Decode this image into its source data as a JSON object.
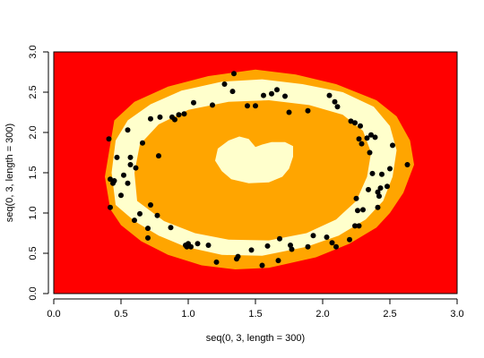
{
  "chart_data": {
    "type": "heatmap",
    "title": "",
    "xlabel": "seq(0, 3, length = 300)",
    "ylabel": "seq(0, 3, length = 300)",
    "xlim": [
      0,
      3
    ],
    "ylim": [
      0,
      3
    ],
    "x_ticks": [
      "0.0",
      "0.5",
      "1.0",
      "1.5",
      "2.0",
      "2.5",
      "3.0"
    ],
    "y_ticks": [
      "0.0",
      "0.5",
      "1.0",
      "1.5",
      "2.0",
      "2.5",
      "3.0"
    ],
    "grid": false,
    "legend": "none",
    "colors": {
      "outer_region": "#ff0000",
      "mid_region": "#ffa500",
      "ring_region": "#ffffcc",
      "center_blob": "#ffffcc",
      "points": "#000000"
    },
    "regions": [
      {
        "name": "outer",
        "color": "#ff0000",
        "polygon": [
          [
            0,
            0
          ],
          [
            3,
            0
          ],
          [
            3,
            3
          ],
          [
            0,
            3
          ]
        ]
      },
      {
        "name": "mid",
        "color": "#ffa500",
        "polygon": [
          [
            0.42,
            1.05
          ],
          [
            0.38,
            1.45
          ],
          [
            0.42,
            1.85
          ],
          [
            0.45,
            2.15
          ],
          [
            0.6,
            2.38
          ],
          [
            0.85,
            2.57
          ],
          [
            1.15,
            2.7
          ],
          [
            1.5,
            2.78
          ],
          [
            1.8,
            2.72
          ],
          [
            2.1,
            2.6
          ],
          [
            2.4,
            2.4
          ],
          [
            2.55,
            2.2
          ],
          [
            2.65,
            1.9
          ],
          [
            2.68,
            1.6
          ],
          [
            2.6,
            1.25
          ],
          [
            2.5,
            1.0
          ],
          [
            2.4,
            0.82
          ],
          [
            2.2,
            0.62
          ],
          [
            1.95,
            0.45
          ],
          [
            1.6,
            0.32
          ],
          [
            1.35,
            0.3
          ],
          [
            1.1,
            0.35
          ],
          [
            0.85,
            0.48
          ],
          [
            0.65,
            0.65
          ],
          [
            0.5,
            0.85
          ]
        ]
      },
      {
        "name": "ring_outer",
        "color": "#ffffcc",
        "polygon": [
          [
            0.46,
            1.1
          ],
          [
            0.43,
            1.5
          ],
          [
            0.46,
            1.9
          ],
          [
            0.55,
            2.15
          ],
          [
            0.72,
            2.35
          ],
          [
            0.95,
            2.52
          ],
          [
            1.25,
            2.63
          ],
          [
            1.55,
            2.66
          ],
          [
            1.85,
            2.6
          ],
          [
            2.15,
            2.5
          ],
          [
            2.38,
            2.32
          ],
          [
            2.5,
            2.08
          ],
          [
            2.55,
            1.78
          ],
          [
            2.52,
            1.45
          ],
          [
            2.45,
            1.15
          ],
          [
            2.32,
            0.92
          ],
          [
            2.12,
            0.72
          ],
          [
            1.88,
            0.58
          ],
          [
            1.55,
            0.47
          ],
          [
            1.25,
            0.48
          ],
          [
            0.98,
            0.58
          ],
          [
            0.78,
            0.72
          ],
          [
            0.6,
            0.9
          ]
        ]
      },
      {
        "name": "ring_inner",
        "color": "#ffa500",
        "polygon": [
          [
            0.62,
            1.15
          ],
          [
            0.6,
            1.5
          ],
          [
            0.64,
            1.85
          ],
          [
            0.78,
            2.1
          ],
          [
            1.0,
            2.28
          ],
          [
            1.3,
            2.38
          ],
          [
            1.6,
            2.4
          ],
          [
            1.9,
            2.34
          ],
          [
            2.15,
            2.22
          ],
          [
            2.3,
            2.02
          ],
          [
            2.36,
            1.75
          ],
          [
            2.33,
            1.45
          ],
          [
            2.25,
            1.15
          ],
          [
            2.1,
            0.92
          ],
          [
            1.88,
            0.75
          ],
          [
            1.6,
            0.66
          ],
          [
            1.3,
            0.67
          ],
          [
            1.05,
            0.75
          ],
          [
            0.82,
            0.9
          ]
        ]
      },
      {
        "name": "center_blob",
        "color": "#ffffcc",
        "polygon": [
          [
            1.2,
            1.65
          ],
          [
            1.22,
            1.8
          ],
          [
            1.3,
            1.9
          ],
          [
            1.38,
            1.95
          ],
          [
            1.45,
            1.92
          ],
          [
            1.5,
            1.82
          ],
          [
            1.55,
            1.85
          ],
          [
            1.62,
            1.88
          ],
          [
            1.72,
            1.88
          ],
          [
            1.78,
            1.83
          ],
          [
            1.78,
            1.7
          ],
          [
            1.75,
            1.55
          ],
          [
            1.7,
            1.45
          ],
          [
            1.6,
            1.38
          ],
          [
            1.45,
            1.37
          ],
          [
            1.32,
            1.42
          ],
          [
            1.25,
            1.52
          ]
        ]
      }
    ],
    "points": {
      "x": [
        0.41,
        0.42,
        0.42,
        0.44,
        0.45,
        0.47,
        0.5,
        0.52,
        0.55,
        0.55,
        0.57,
        0.57,
        0.6,
        0.61,
        0.64,
        0.66,
        0.7,
        0.7,
        0.72,
        0.72,
        0.77,
        0.78,
        0.79,
        0.87,
        0.88,
        0.9,
        0.93,
        0.97,
        0.98,
        0.99,
        1.0,
        1.02,
        1.04,
        1.07,
        1.15,
        1.18,
        1.21,
        1.27,
        1.33,
        1.34,
        1.36,
        1.37,
        1.44,
        1.47,
        1.5,
        1.55,
        1.56,
        1.59,
        1.62,
        1.66,
        1.67,
        1.68,
        1.72,
        1.75,
        1.76,
        1.77,
        1.89,
        1.89,
        1.93,
        2.03,
        2.05,
        2.07,
        2.09,
        2.1,
        2.11,
        2.2,
        2.21,
        2.24,
        2.24,
        2.25,
        2.26,
        2.27,
        2.27,
        2.28,
        2.29,
        2.3,
        2.33,
        2.34,
        2.35,
        2.36,
        2.37,
        2.39,
        2.41,
        2.41,
        2.42,
        2.43,
        2.44,
        2.48,
        2.5,
        2.52,
        2.63
      ],
      "y": [
        1.92,
        1.07,
        1.42,
        1.37,
        1.4,
        1.69,
        1.22,
        1.47,
        1.37,
        2.03,
        1.6,
        1.69,
        0.91,
        1.56,
        0.99,
        1.87,
        0.69,
        0.81,
        1.1,
        2.17,
        0.97,
        1.71,
        2.19,
        0.82,
        2.19,
        2.16,
        2.22,
        2.23,
        0.6,
        0.58,
        0.62,
        0.58,
        2.37,
        0.62,
        0.6,
        2.34,
        0.39,
        2.6,
        2.51,
        2.73,
        0.43,
        0.46,
        2.33,
        0.54,
        2.33,
        0.35,
        2.46,
        0.59,
        2.48,
        2.53,
        0.41,
        0.68,
        2.45,
        2.25,
        0.6,
        0.55,
        0.58,
        2.27,
        0.72,
        0.7,
        2.46,
        0.63,
        2.38,
        0.58,
        2.32,
        0.67,
        2.14,
        2.12,
        0.84,
        1.18,
        1.03,
        0.84,
        1.92,
        2.08,
        1.86,
        1.04,
        1.93,
        1.29,
        1.75,
        1.97,
        1.49,
        1.94,
        1.26,
        1.07,
        1.21,
        1.31,
        1.48,
        1.33,
        1.55,
        1.84,
        1.6
      ]
    }
  }
}
